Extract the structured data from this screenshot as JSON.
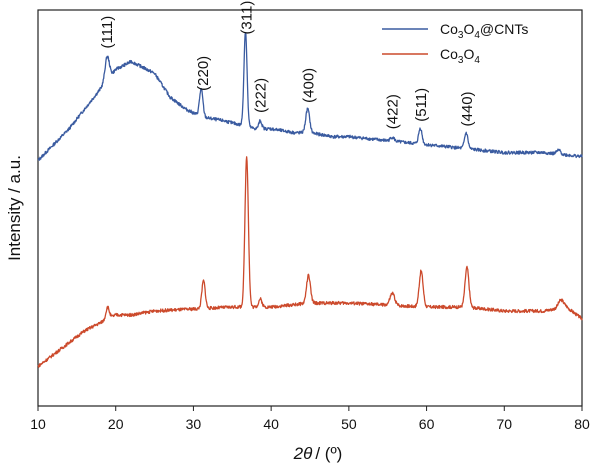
{
  "chart_data": {
    "type": "line",
    "xlabel_italic": "2θ",
    "xlabel_rest": "/ (º)",
    "ylabel": "Intensity / a.u.",
    "xlim": [
      10,
      80
    ],
    "x_ticks": [
      "10",
      "20",
      "30",
      "40",
      "50",
      "60",
      "70",
      "80"
    ],
    "y_ticks": "none",
    "grid": false,
    "legend_position": "top-right",
    "legend": [
      {
        "key": "cnt",
        "main": "Co",
        "sub1": "3",
        "mid": "O",
        "sub2": "4",
        "tail": "@CNTs",
        "color": "#3a5ba0"
      },
      {
        "key": "co",
        "main": "Co",
        "sub1": "3",
        "mid": "O",
        "sub2": "4",
        "tail": "",
        "color": "#cc4a2c"
      }
    ],
    "peak_labels": [
      {
        "text": "(111)",
        "x": 18.9
      },
      {
        "text": "(220)",
        "x": 31.2
      },
      {
        "text": "(311)",
        "x": 36.8
      },
      {
        "text": "(222)",
        "x": 38.6
      },
      {
        "text": "(400)",
        "x": 44.8
      },
      {
        "text": "(422)",
        "x": 55.6
      },
      {
        "text": "(511)",
        "x": 59.3
      },
      {
        "text": "(440)",
        "x": 65.2
      }
    ],
    "series": [
      {
        "key": "cnt",
        "name": "Co3O4@CNTs",
        "color": "#3a5ba0",
        "baseline": [
          [
            10,
            0.62
          ],
          [
            12,
            0.66
          ],
          [
            14,
            0.7
          ],
          [
            16,
            0.75
          ],
          [
            18,
            0.8
          ],
          [
            20,
            0.85
          ],
          [
            22,
            0.87
          ],
          [
            24,
            0.85
          ],
          [
            25,
            0.84
          ],
          [
            27,
            0.78
          ],
          [
            29,
            0.75
          ],
          [
            31,
            0.73
          ],
          [
            34,
            0.72
          ],
          [
            36,
            0.71
          ],
          [
            38,
            0.7
          ],
          [
            40,
            0.7
          ],
          [
            43,
            0.69
          ],
          [
            45,
            0.69
          ],
          [
            48,
            0.68
          ],
          [
            50,
            0.68
          ],
          [
            55,
            0.67
          ],
          [
            60,
            0.66
          ],
          [
            65,
            0.65
          ],
          [
            70,
            0.64
          ],
          [
            75,
            0.64
          ],
          [
            80,
            0.63
          ]
        ],
        "peaks": [
          [
            18.9,
            0.06,
            0.28
          ],
          [
            31.0,
            0.07,
            0.22
          ],
          [
            36.7,
            0.24,
            0.2
          ],
          [
            38.6,
            0.02,
            0.2
          ],
          [
            44.7,
            0.06,
            0.25
          ],
          [
            55.6,
            0.01,
            0.25
          ],
          [
            59.2,
            0.04,
            0.22
          ],
          [
            65.1,
            0.04,
            0.22
          ],
          [
            77.0,
            0.01,
            0.25
          ]
        ]
      },
      {
        "key": "co",
        "name": "Co3O4",
        "color": "#cc4a2c",
        "baseline": [
          [
            10,
            0.1
          ],
          [
            12,
            0.13
          ],
          [
            14,
            0.16
          ],
          [
            16,
            0.19
          ],
          [
            18,
            0.21
          ],
          [
            20,
            0.23
          ],
          [
            22,
            0.23
          ],
          [
            25,
            0.24
          ],
          [
            30,
            0.245
          ],
          [
            35,
            0.25
          ],
          [
            40,
            0.25
          ],
          [
            45,
            0.26
          ],
          [
            50,
            0.26
          ],
          [
            55,
            0.255
          ],
          [
            60,
            0.25
          ],
          [
            65,
            0.25
          ],
          [
            70,
            0.24
          ],
          [
            75,
            0.24
          ],
          [
            78,
            0.25
          ],
          [
            80,
            0.22
          ]
        ],
        "peaks": [
          [
            18.95,
            0.03,
            0.22
          ],
          [
            31.3,
            0.07,
            0.22
          ],
          [
            36.85,
            0.38,
            0.22
          ],
          [
            38.6,
            0.02,
            0.22
          ],
          [
            44.8,
            0.07,
            0.25
          ],
          [
            55.6,
            0.03,
            0.3
          ],
          [
            59.3,
            0.09,
            0.25
          ],
          [
            65.2,
            0.1,
            0.25
          ],
          [
            77.3,
            0.02,
            0.35
          ]
        ]
      }
    ]
  }
}
